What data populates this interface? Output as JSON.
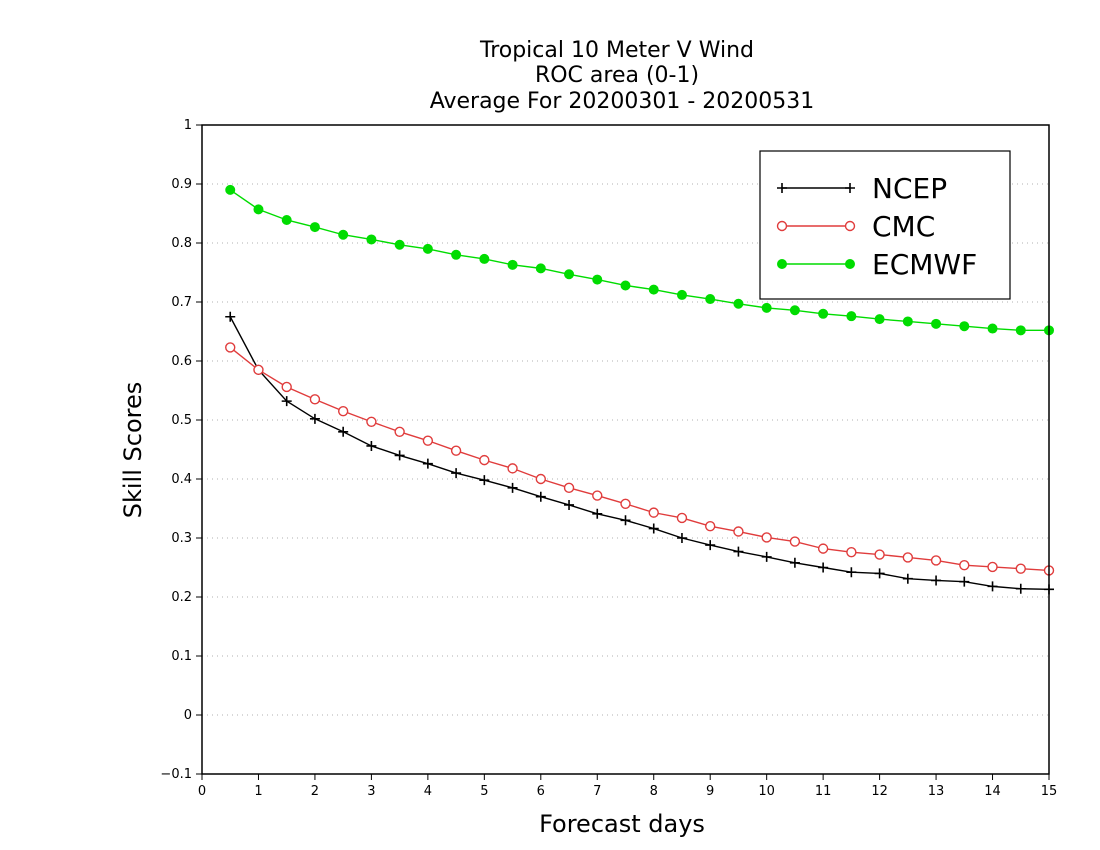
{
  "chart_data": {
    "type": "line",
    "title_lines": [
      "Tropical 10 Meter V Wind",
      "ROC area (0-1)",
      "Average For 20200301 - 20200531"
    ],
    "xlabel": "Forecast days",
    "ylabel": "Skill Scores",
    "xlim": [
      0,
      15
    ],
    "ylim": [
      -0.1,
      1
    ],
    "x_ticks": [
      "0",
      "1",
      "2",
      "3",
      "4",
      "5",
      "6",
      "7",
      "8",
      "9",
      "10",
      "11",
      "12",
      "13",
      "14",
      "15"
    ],
    "y_ticks": [
      "−0.1",
      "0",
      "0.1",
      "0.2",
      "0.3",
      "0.4",
      "0.5",
      "0.6",
      "0.7",
      "0.8",
      "0.9",
      "1"
    ],
    "grid": "horizontal-dotted",
    "legend_position": "top-right",
    "x": [
      0.5,
      1,
      1.5,
      2,
      2.5,
      3,
      3.5,
      4,
      4.5,
      5,
      5.5,
      6,
      6.5,
      7,
      7.5,
      8,
      8.5,
      9,
      9.5,
      10,
      10.5,
      11,
      11.5,
      12,
      12.5,
      13,
      13.5,
      14,
      14.5,
      15
    ],
    "series": [
      {
        "name": "NCEP",
        "color": "#000000",
        "marker": "plus",
        "values": [
          0.675,
          0.585,
          0.532,
          0.502,
          0.48,
          0.456,
          0.44,
          0.426,
          0.41,
          0.398,
          0.385,
          0.37,
          0.356,
          0.341,
          0.33,
          0.316,
          0.3,
          0.288,
          0.277,
          0.268,
          0.258,
          0.25,
          0.242,
          0.24,
          0.231,
          0.228,
          0.226,
          0.218,
          0.214,
          0.213
        ]
      },
      {
        "name": "CMC",
        "color": "#e03c3c",
        "marker": "open-circle",
        "values": [
          0.623,
          0.585,
          0.556,
          0.535,
          0.515,
          0.497,
          0.48,
          0.465,
          0.448,
          0.432,
          0.418,
          0.4,
          0.385,
          0.372,
          0.358,
          0.343,
          0.334,
          0.32,
          0.311,
          0.301,
          0.294,
          0.282,
          0.276,
          0.272,
          0.267,
          0.262,
          0.254,
          0.251,
          0.248,
          0.245
        ]
      },
      {
        "name": "ECMWF",
        "color": "#00dc00",
        "marker": "filled-circle",
        "values": [
          0.89,
          0.857,
          0.839,
          0.827,
          0.814,
          0.806,
          0.797,
          0.79,
          0.78,
          0.773,
          0.763,
          0.757,
          0.747,
          0.738,
          0.728,
          0.721,
          0.712,
          0.705,
          0.697,
          0.69,
          0.686,
          0.68,
          0.676,
          0.671,
          0.667,
          0.663,
          0.659,
          0.655,
          0.652,
          0.652
        ]
      }
    ]
  }
}
